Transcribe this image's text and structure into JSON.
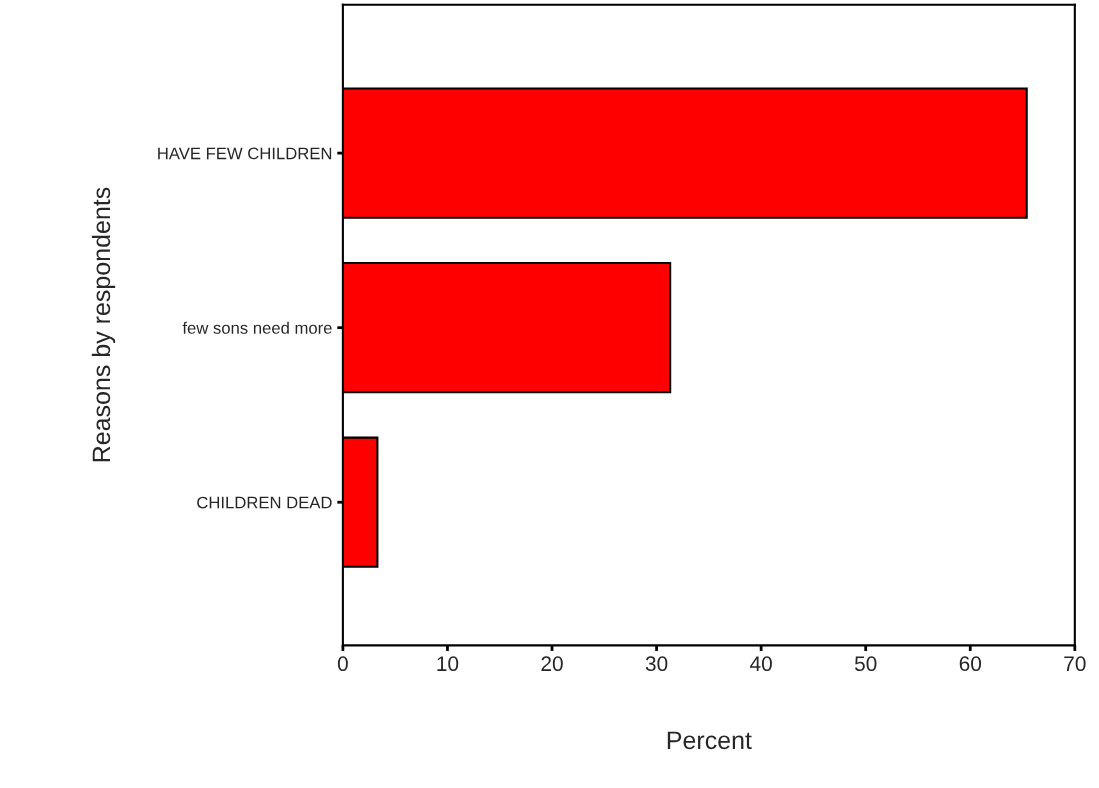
{
  "chart_data": {
    "type": "bar",
    "orientation": "horizontal",
    "xlabel": "Percent",
    "ylabel": "Reasons by respondents",
    "categories": [
      "HAVE FEW CHILDREN",
      "few sons need more",
      "CHILDREN DEAD"
    ],
    "values": [
      65.4,
      31.3,
      3.3
    ],
    "color": "#ff0000",
    "xlim": [
      0,
      70
    ],
    "xticks": [
      0,
      10,
      20,
      30,
      40,
      50,
      60,
      70
    ],
    "grid": false,
    "legend": false
  }
}
